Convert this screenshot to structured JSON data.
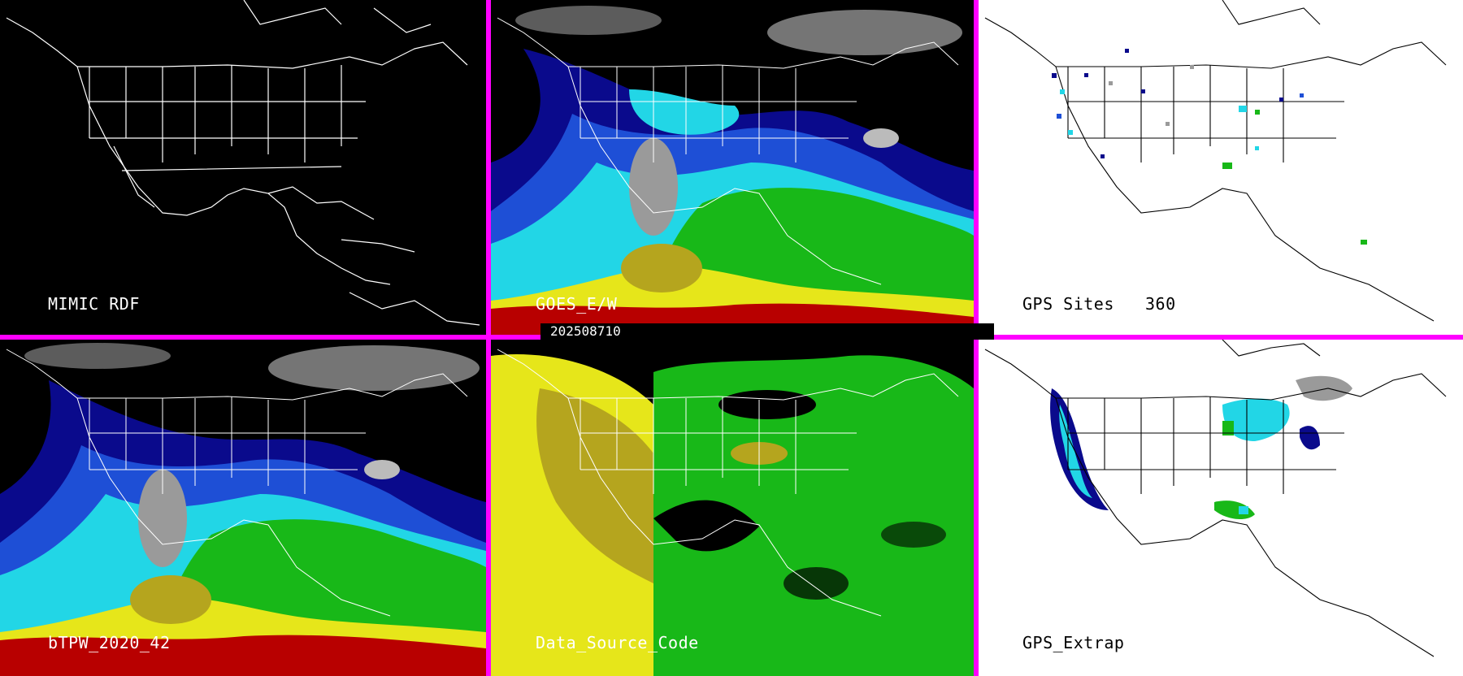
{
  "panels": {
    "p1": {
      "label": "MIMIC RDF"
    },
    "p2": {
      "label": "GOES_E/W"
    },
    "p3": {
      "label": "GPS Sites",
      "count": "360"
    },
    "p4": {
      "label": "bTPW_2020_42"
    },
    "p5": {
      "label": "Data_Source_Code"
    },
    "p6": {
      "label": "GPS_Extrap"
    }
  },
  "timestamp": "202508710",
  "colors": {
    "divider": "#ff00ff",
    "map_lines_on_dark": "#ffffff",
    "map_lines_on_light": "#000000",
    "tpw_dark_blue": "#0a0a8c",
    "tpw_blue": "#1e4fd6",
    "tpw_cyan": "#22d6e6",
    "tpw_green": "#18b818",
    "tpw_yellow": "#e6e61a",
    "tpw_olive": "#b5a51e",
    "tpw_red": "#b80000",
    "tpw_gray": "#9a9a9a"
  }
}
